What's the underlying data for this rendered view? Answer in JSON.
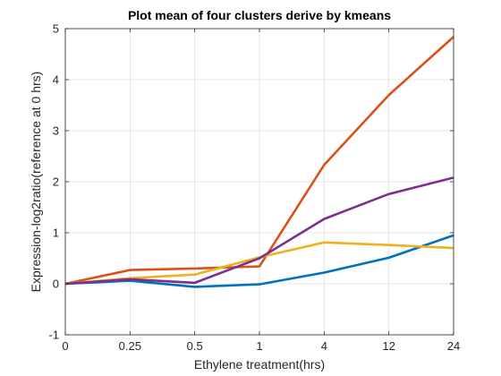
{
  "chart_data": {
    "type": "line",
    "title": "Plot mean of four clusters derive by kmeans",
    "xlabel": "Ethylene treatment(hrs)",
    "ylabel": "Expression-log2ratio(reference at 0 hrs)",
    "categories": [
      "0",
      "0.25",
      "0.5",
      "1",
      "4",
      "12",
      "24"
    ],
    "ylim": [
      -1,
      5
    ],
    "yticks": [
      "-1",
      "0",
      "1",
      "2",
      "3",
      "4",
      "5"
    ],
    "grid": true,
    "series": [
      {
        "color": "#0072BD",
        "values": [
          0.0,
          0.06,
          -0.06,
          -0.01,
          0.22,
          0.51,
          0.95
        ]
      },
      {
        "color": "#D95319",
        "values": [
          0.0,
          0.27,
          0.3,
          0.34,
          2.33,
          3.7,
          4.84
        ]
      },
      {
        "color": "#EDB120",
        "values": [
          0.0,
          0.11,
          0.18,
          0.52,
          0.81,
          0.76,
          0.7
        ]
      },
      {
        "color": "#7E2F8E",
        "values": [
          0.0,
          0.09,
          0.02,
          0.5,
          1.27,
          1.76,
          2.08
        ]
      }
    ]
  }
}
